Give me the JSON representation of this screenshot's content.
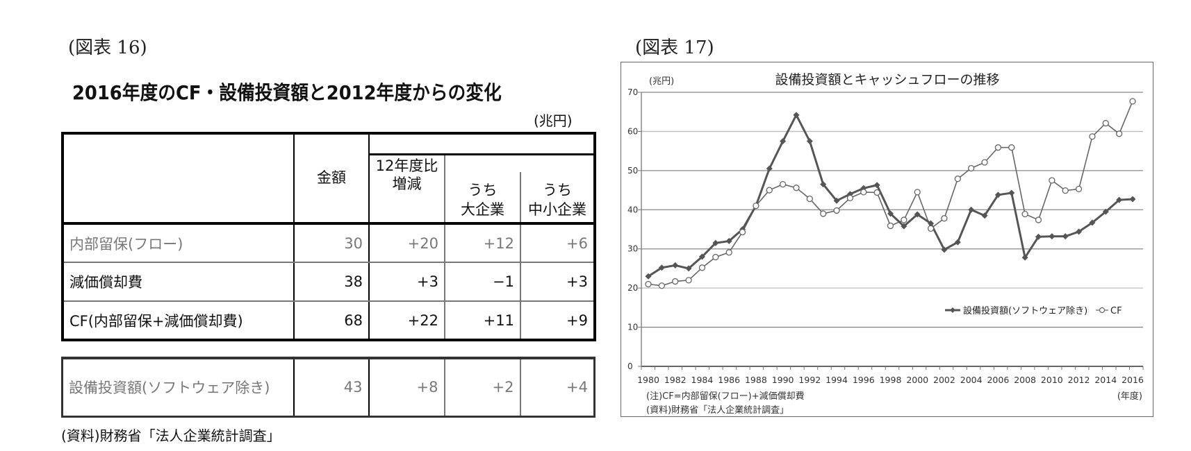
{
  "left": {
    "figure_label": "(図表 16)",
    "title": "2016年度のCF・設備投資額と2012年度からの変化",
    "unit": "(兆円)",
    "headers": {
      "amount": "金額",
      "change_line1": "12年度比",
      "change_line2": "増減",
      "large_line1": "うち",
      "large_line2": "大企業",
      "sme_line1": "うち",
      "sme_line2": "中小企業"
    },
    "rows": [
      {
        "label": "内部留保(フロー)",
        "amount": "30",
        "change": "+20",
        "large": "+12",
        "sme": "+6",
        "muted": true
      },
      {
        "label": "減価償却費",
        "amount": "38",
        "change": "+3",
        "large": "−1",
        "sme": "+3",
        "muted": false
      },
      {
        "label": "CF(内部留保+減価償却費)",
        "amount": "68",
        "change": "+22",
        "large": "+11",
        "sme": "+9",
        "muted": false
      }
    ],
    "capex_row": {
      "label": "設備投資額(ソフトウェア除き)",
      "amount": "43",
      "change": "+8",
      "large": "+2",
      "sme": "+4"
    },
    "source": "(資料)財務省「法人企業統計調査」"
  },
  "right": {
    "figure_label": "(図表 17)",
    "note": "(注)CF=内部留保(フロー)+減価償却費",
    "source": "(資料)財務省「法人企業統計調査」"
  },
  "chart_data": {
    "type": "line",
    "title": "設備投資額とキャッシュフローの推移",
    "ylabel": "(兆円)",
    "xlabel": "(年度)",
    "ylim": [
      0,
      70
    ],
    "yticks": [
      0,
      10,
      20,
      30,
      40,
      50,
      60,
      70
    ],
    "xticks": [
      "1980",
      "1982",
      "1984",
      "1986",
      "1988",
      "1990",
      "1992",
      "1994",
      "1996",
      "1998",
      "2000",
      "2002",
      "2004",
      "2006",
      "2008",
      "2010",
      "2012",
      "2014",
      "2016"
    ],
    "grid": true,
    "legend_position": "inside-right",
    "x": [
      1980,
      1981,
      1982,
      1983,
      1984,
      1985,
      1986,
      1987,
      1988,
      1989,
      1990,
      1991,
      1992,
      1993,
      1994,
      1995,
      1996,
      1997,
      1998,
      1999,
      2000,
      2001,
      2002,
      2003,
      2004,
      2005,
      2006,
      2007,
      2008,
      2009,
      2010,
      2011,
      2012,
      2013,
      2014,
      2015,
      2016
    ],
    "series": [
      {
        "name": "設備投資額(ソフトウェア除き)",
        "marker": "diamond-filled",
        "color": "#555555",
        "values": [
          23,
          25.2,
          25.8,
          25,
          28,
          31.5,
          32,
          35,
          41,
          50.5,
          57.5,
          64.2,
          57.5,
          46.5,
          42.3,
          44,
          45.5,
          46.3,
          39,
          35.8,
          38.8,
          36.5,
          29.8,
          31.7,
          40,
          38.5,
          43.8,
          44.3,
          27.8,
          33.1,
          33.2,
          33.2,
          34.4,
          36.7,
          39.5,
          42.5,
          42.7
        ]
      },
      {
        "name": "CF",
        "marker": "circle-open",
        "color": "#666666",
        "values": [
          21,
          20.6,
          21.7,
          22,
          25.2,
          27.9,
          29.1,
          34.3,
          41,
          45,
          46.5,
          45.6,
          42.8,
          39,
          39.8,
          43,
          44.5,
          44.4,
          35.9,
          37.4,
          44.5,
          35.2,
          37.8,
          47.9,
          50.6,
          52.1,
          55.9,
          55.9,
          38.9,
          37.4,
          47.5,
          44.9,
          45.3,
          58.7,
          62.1,
          59.4,
          67.7
        ]
      }
    ]
  }
}
